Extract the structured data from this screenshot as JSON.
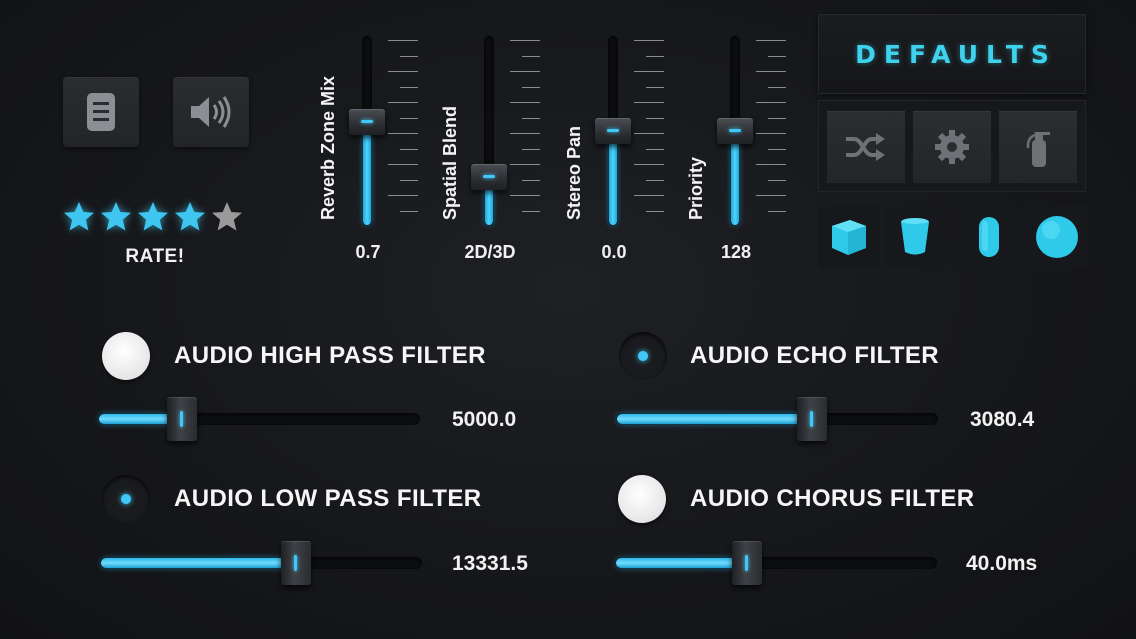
{
  "colors": {
    "accent": "#40c8f8",
    "defaults_text": "#3fd2ec",
    "star": "#3fc6f0",
    "star_empty": "#9a9a9a"
  },
  "top_left": {
    "buttons": [
      {
        "icon": "document-icon"
      },
      {
        "icon": "speaker-icon"
      }
    ],
    "rating": {
      "stars_filled": 4,
      "stars_total": 5,
      "label": "RATE!"
    }
  },
  "vertical_sliders": [
    {
      "label": "Reverb Zone Mix",
      "value": "0.7",
      "level": 0.55
    },
    {
      "label": "Spatial  Blend",
      "value": "2D/3D",
      "level": 0.26
    },
    {
      "label": "Stereo  Pan",
      "value": "0.0",
      "level": 0.5
    },
    {
      "label": "Priority",
      "value": "128",
      "level": 0.5
    }
  ],
  "right_panel": {
    "defaults_label": "DEFAULTS",
    "tools": [
      {
        "icon": "shuffle-icon"
      },
      {
        "icon": "gear-icon"
      },
      {
        "icon": "fire-extinguisher-icon"
      }
    ],
    "shapes": [
      {
        "icon": "cube-icon"
      },
      {
        "icon": "cup-icon"
      },
      {
        "icon": "capsule-icon"
      },
      {
        "icon": "sphere-icon"
      }
    ]
  },
  "filters": [
    {
      "label": "AUDIO HIGH PASS FILTER",
      "enabled": false,
      "value": "5000.0",
      "level": 0.26
    },
    {
      "label": "AUDIO ECHO FILTER",
      "enabled": true,
      "value": "3080.4",
      "level": 0.61
    },
    {
      "label": "AUDIO LOW PASS FILTER",
      "enabled": true,
      "value": "13331.5",
      "level": 0.61
    },
    {
      "label": "AUDIO CHORUS FILTER",
      "enabled": false,
      "value": "40.0ms",
      "level": 0.41
    }
  ]
}
